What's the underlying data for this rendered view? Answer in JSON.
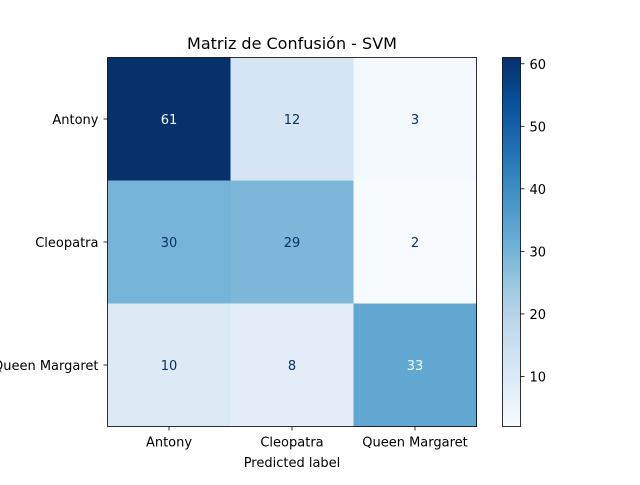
{
  "chart_data": {
    "type": "heatmap",
    "title": "Matriz de Confusión - SVM",
    "xlabel": "Predicted label",
    "ylabel": "",
    "x_categories": [
      "Antony",
      "Cleopatra",
      "Queen Margaret"
    ],
    "y_categories": [
      "Antony",
      "Cleopatra",
      "Queen Margaret"
    ],
    "values": [
      [
        61,
        12,
        3
      ],
      [
        30,
        29,
        2
      ],
      [
        10,
        8,
        33
      ]
    ],
    "colormap": "Blues",
    "colorbar": {
      "range": [
        2,
        61
      ],
      "ticks": [
        10,
        20,
        30,
        40,
        50,
        60
      ]
    }
  }
}
